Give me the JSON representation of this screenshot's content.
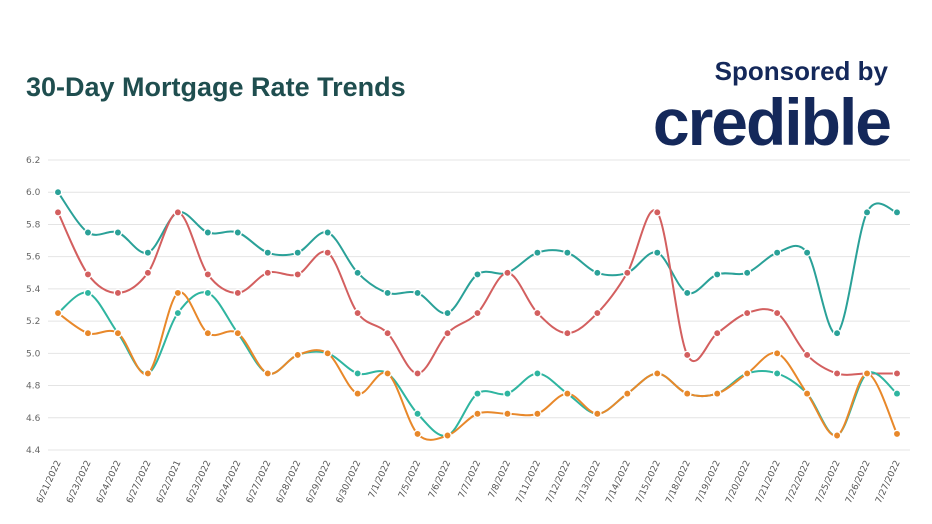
{
  "header": {
    "title": "30-Day Mortgage Rate Trends",
    "sponsor_label": "Sponsored by",
    "sponsor_brand": "credible"
  },
  "colors": {
    "title": "#1f4e4f",
    "brand": "#14285a",
    "grid": "#e4e4e4"
  },
  "chart_data": {
    "type": "line",
    "title": "30-Day Mortgage Rate Trends",
    "xlabel": "",
    "ylabel": "",
    "ylim": [
      4.4,
      6.2
    ],
    "yticks": [
      4.4,
      4.6,
      4.8,
      5.0,
      5.2,
      5.4,
      5.6,
      5.8,
      6.0,
      6.2
    ],
    "grid": true,
    "legend": "none",
    "categories": [
      "6/21/2022",
      "6/23/2022",
      "6/24/2022",
      "6/27/2022",
      "6/22/2021",
      "6/23/2022",
      "6/24/2022",
      "6/27/2022",
      "6/28/2022",
      "6/29/2022",
      "6/30/2022",
      "7/1/2022",
      "7/5/2022",
      "7/6/2022",
      "7/7/2022",
      "7/8/2022",
      "7/11/2022",
      "7/12/2022",
      "7/13/2022",
      "7/14/2022",
      "7/15/2022",
      "7/18/2022",
      "7/19/2022",
      "7/20/2022",
      "7/21/2022",
      "7/22/2022",
      "7/25/2022",
      "7/26/2022",
      "7/27/2022"
    ],
    "series": [
      {
        "color": "#2aa198",
        "values": [
          6.0,
          5.75,
          5.75,
          5.625,
          5.875,
          5.75,
          5.75,
          5.625,
          5.625,
          5.75,
          5.5,
          5.375,
          5.375,
          5.25,
          5.49,
          5.5,
          5.625,
          5.625,
          5.5,
          5.5,
          5.625,
          5.375,
          5.49,
          5.5,
          5.625,
          5.625,
          5.125,
          5.875,
          5.875
        ]
      },
      {
        "color": "#d35f5f",
        "values": [
          5.875,
          5.49,
          5.375,
          5.5,
          5.875,
          5.49,
          5.375,
          5.5,
          5.49,
          5.625,
          5.25,
          5.125,
          4.875,
          5.125,
          5.25,
          5.5,
          5.25,
          5.125,
          5.25,
          5.5,
          5.875,
          4.99,
          5.125,
          5.25,
          5.25,
          4.99,
          4.875,
          4.875,
          4.875
        ]
      },
      {
        "color": "#2fb5a0",
        "values": [
          5.25,
          5.375,
          5.125,
          4.875,
          5.25,
          5.375,
          5.125,
          4.875,
          4.99,
          5.0,
          4.875,
          4.875,
          4.625,
          4.49,
          4.75,
          4.75,
          4.875,
          4.75,
          4.625,
          4.75,
          4.875,
          4.75,
          4.75,
          4.875,
          4.875,
          4.75,
          4.49,
          4.875,
          4.75
        ]
      },
      {
        "color": "#e8882a",
        "values": [
          5.25,
          5.125,
          5.125,
          4.875,
          5.375,
          5.125,
          5.125,
          4.875,
          4.99,
          5.0,
          4.75,
          4.875,
          4.5,
          4.49,
          4.625,
          4.625,
          4.625,
          4.75,
          4.625,
          4.75,
          4.875,
          4.75,
          4.75,
          4.875,
          5.0,
          4.75,
          4.49,
          4.875,
          4.5
        ]
      }
    ]
  }
}
